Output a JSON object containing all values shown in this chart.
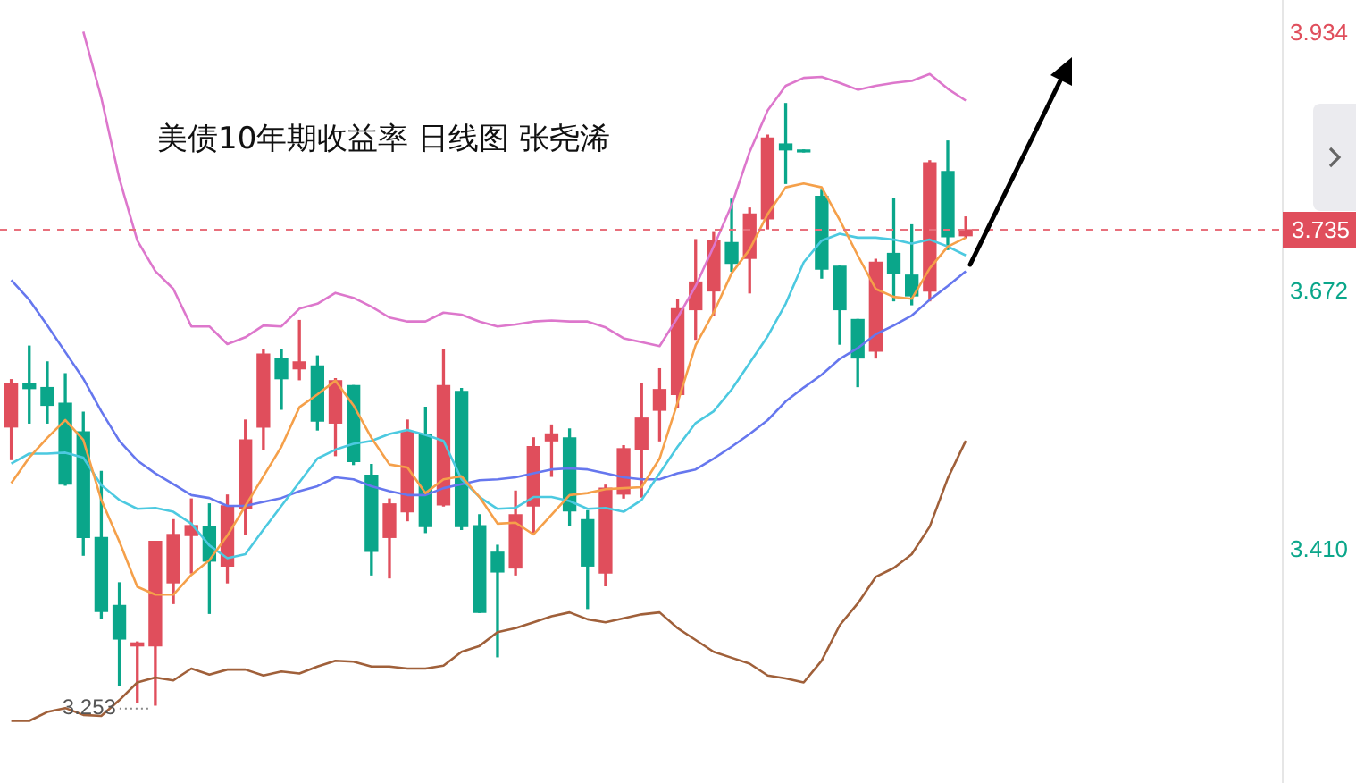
{
  "chart_data": {
    "type": "candlestick",
    "title": "美债10年期收益率 日线图 张尧浠",
    "categories": [
      null,
      null,
      null,
      null,
      null,
      null,
      null,
      null,
      null,
      null,
      null,
      null,
      null,
      null,
      null,
      null,
      null,
      null,
      null,
      null,
      null,
      null,
      null,
      null,
      null,
      null,
      null,
      null,
      null,
      null,
      null,
      null,
      null,
      null,
      null,
      null,
      null,
      null,
      null,
      null,
      null,
      null,
      null,
      null,
      null,
      null,
      null,
      null,
      null,
      null,
      null,
      null,
      null,
      null
    ],
    "ohlc": [
      [
        3.535,
        3.583,
        3.502,
        3.579
      ],
      [
        3.579,
        3.617,
        3.539,
        3.574
      ],
      [
        3.575,
        3.601,
        3.539,
        3.557
      ],
      [
        3.559,
        3.589,
        3.476,
        3.477
      ],
      [
        3.53,
        3.55,
        3.405,
        3.423
      ],
      [
        3.423,
        3.49,
        3.341,
        3.348
      ],
      [
        3.354,
        3.377,
        3.273,
        3.32
      ],
      [
        3.313,
        3.317,
        3.256,
        3.316
      ],
      [
        3.313,
        3.419,
        3.253,
        3.419
      ],
      [
        3.377,
        3.441,
        3.356,
        3.426
      ],
      [
        3.425,
        3.462,
        3.387,
        3.435
      ],
      [
        3.434,
        3.457,
        3.346,
        3.399
      ],
      [
        3.394,
        3.466,
        3.377,
        3.455
      ],
      [
        3.452,
        3.542,
        3.426,
        3.522
      ],
      [
        3.535,
        3.613,
        3.512,
        3.609
      ],
      [
        3.604,
        3.613,
        3.553,
        3.584
      ],
      [
        3.594,
        3.643,
        3.583,
        3.601
      ],
      [
        3.597,
        3.607,
        3.532,
        3.541
      ],
      [
        3.539,
        3.584,
        3.506,
        3.582
      ],
      [
        3.577,
        3.577,
        3.497,
        3.5
      ],
      [
        3.486,
        3.497,
        3.385,
        3.409
      ],
      [
        3.423,
        3.462,
        3.382,
        3.457
      ],
      [
        3.449,
        3.542,
        3.44,
        3.53
      ],
      [
        3.527,
        3.555,
        3.428,
        3.434
      ],
      [
        3.456,
        3.613,
        3.455,
        3.577
      ],
      [
        3.571,
        3.574,
        3.431,
        3.434
      ],
      [
        3.435,
        3.446,
        3.347,
        3.347
      ],
      [
        3.408,
        3.415,
        3.302,
        3.388
      ],
      [
        3.392,
        3.47,
        3.385,
        3.446
      ],
      [
        3.455,
        3.524,
        3.428,
        3.515
      ],
      [
        3.521,
        3.537,
        3.485,
        3.528
      ],
      [
        3.524,
        3.533,
        3.435,
        3.45
      ],
      [
        3.441,
        3.45,
        3.351,
        3.394
      ],
      [
        3.387,
        3.476,
        3.374,
        3.473
      ],
      [
        3.467,
        3.516,
        3.463,
        3.513
      ],
      [
        3.512,
        3.579,
        3.464,
        3.544
      ],
      [
        3.552,
        3.594,
        3.521,
        3.573
      ],
      [
        3.568,
        3.664,
        3.555,
        3.655
      ],
      [
        3.654,
        3.725,
        3.624,
        3.682
      ],
      [
        3.673,
        3.733,
        3.648,
        3.724
      ],
      [
        3.722,
        3.766,
        3.693,
        3.701
      ],
      [
        3.706,
        3.757,
        3.671,
        3.751
      ],
      [
        3.746,
        3.831,
        3.736,
        3.828
      ],
      [
        3.822,
        3.863,
        3.782,
        3.816
      ],
      [
        3.815,
        3.815,
        3.814,
        3.814
      ],
      [
        3.769,
        3.775,
        3.686,
        3.695
      ],
      [
        3.698,
        3.698,
        3.619,
        3.654
      ],
      [
        3.644,
        3.644,
        3.576,
        3.605
      ],
      [
        3.612,
        3.705,
        3.605,
        3.702
      ],
      [
        3.711,
        3.767,
        3.663,
        3.691
      ],
      [
        3.689,
        3.74,
        3.659,
        3.668
      ],
      [
        3.673,
        3.805,
        3.663,
        3.803
      ],
      [
        3.794,
        3.825,
        3.715,
        3.728
      ],
      [
        3.729,
        3.748,
        3.727,
        3.735
      ]
    ],
    "series": [
      {
        "type": "line",
        "color": "#f5a04a",
        "values": [
          3.478,
          3.504,
          3.524,
          3.542,
          3.522,
          3.461,
          3.419,
          3.373,
          3.365,
          3.365,
          3.385,
          3.4,
          3.425,
          3.455,
          3.485,
          3.515,
          3.555,
          3.568,
          3.582,
          3.557,
          3.524,
          3.497,
          3.494,
          3.468,
          3.482,
          3.485,
          3.464,
          3.437,
          3.438,
          3.426,
          3.446,
          3.466,
          3.468,
          3.472,
          3.473,
          3.474,
          3.503,
          3.56,
          3.618,
          3.651,
          3.691,
          3.715,
          3.751,
          3.778,
          3.782,
          3.778,
          3.745,
          3.709,
          3.675,
          3.667,
          3.665,
          3.696,
          3.718,
          3.727
        ]
      },
      {
        "type": "line",
        "color": "#4cc9e0",
        "values": [
          3.498,
          3.508,
          3.508,
          3.509,
          3.504,
          3.476,
          3.461,
          3.452,
          3.453,
          3.449,
          3.437,
          3.415,
          3.402,
          3.406,
          3.431,
          3.455,
          3.479,
          3.503,
          3.512,
          3.518,
          3.521,
          3.528,
          3.532,
          3.527,
          3.521,
          3.482,
          3.464,
          3.452,
          3.453,
          3.464,
          3.464,
          3.46,
          3.452,
          3.453,
          3.449,
          3.461,
          3.488,
          3.515,
          3.539,
          3.551,
          3.573,
          3.6,
          3.627,
          3.66,
          3.702,
          3.724,
          3.731,
          3.727,
          3.727,
          3.725,
          3.721,
          3.725,
          3.718,
          3.709
        ]
      },
      {
        "type": "line",
        "color": "#6677ee",
        "values": [
          3.684,
          3.664,
          3.638,
          3.611,
          3.584,
          3.551,
          3.521,
          3.501,
          3.488,
          3.477,
          3.466,
          3.463,
          3.455,
          3.455,
          3.459,
          3.463,
          3.47,
          3.475,
          3.484,
          3.482,
          3.475,
          3.47,
          3.466,
          3.466,
          3.473,
          3.477,
          3.481,
          3.482,
          3.484,
          3.488,
          3.492,
          3.493,
          3.492,
          3.488,
          3.484,
          3.482,
          3.482,
          3.488,
          3.492,
          3.503,
          3.515,
          3.528,
          3.542,
          3.561,
          3.575,
          3.588,
          3.604,
          3.615,
          3.629,
          3.638,
          3.648,
          3.664,
          3.678,
          3.693
        ]
      },
      {
        "type": "line",
        "color": "#dd77cc",
        "values": [
          null,
          null,
          null,
          null,
          3.936,
          3.869,
          3.787,
          3.724,
          3.693,
          3.675,
          3.637,
          3.637,
          3.619,
          3.626,
          3.638,
          3.637,
          3.655,
          3.66,
          3.671,
          3.666,
          3.657,
          3.646,
          3.642,
          3.642,
          3.651,
          3.649,
          3.642,
          3.637,
          3.639,
          3.642,
          3.643,
          3.642,
          3.642,
          3.636,
          3.625,
          3.621,
          3.617,
          3.646,
          3.678,
          3.718,
          3.76,
          3.814,
          3.856,
          3.881,
          3.889,
          3.89,
          3.884,
          3.877,
          3.881,
          3.884,
          3.886,
          3.893,
          3.878,
          3.866
        ]
      },
      {
        "type": "line",
        "color": "#a0603a",
        "values": [
          3.237,
          3.237,
          3.246,
          3.25,
          3.243,
          3.242,
          3.258,
          3.276,
          3.281,
          3.278,
          3.29,
          3.284,
          3.289,
          3.289,
          3.283,
          3.287,
          3.285,
          3.292,
          3.298,
          3.297,
          3.292,
          3.292,
          3.29,
          3.29,
          3.293,
          3.307,
          3.313,
          3.327,
          3.331,
          3.337,
          3.343,
          3.347,
          3.34,
          3.337,
          3.341,
          3.345,
          3.347,
          3.331,
          3.319,
          3.307,
          3.301,
          3.295,
          3.283,
          3.28,
          3.276,
          3.298,
          3.334,
          3.356,
          3.383,
          3.392,
          3.406,
          3.434,
          3.483,
          3.521
        ]
      }
    ],
    "ylim": [
      3.174,
      3.968
    ],
    "yticks": [
      3.934,
      3.672,
      {
        "value": 3.41,
        "label": "3.410"
      }
    ],
    "tick_labels": "y",
    "grid": false,
    "legend": false,
    "ref_lines": [
      {
        "axis": "y",
        "value": 3.735,
        "label": "3.735",
        "color": "#e8707c",
        "line_style": "dashed"
      }
    ],
    "annotations": [
      {
        "text": "3.253",
        "y": 3.253
      }
    ]
  }
}
